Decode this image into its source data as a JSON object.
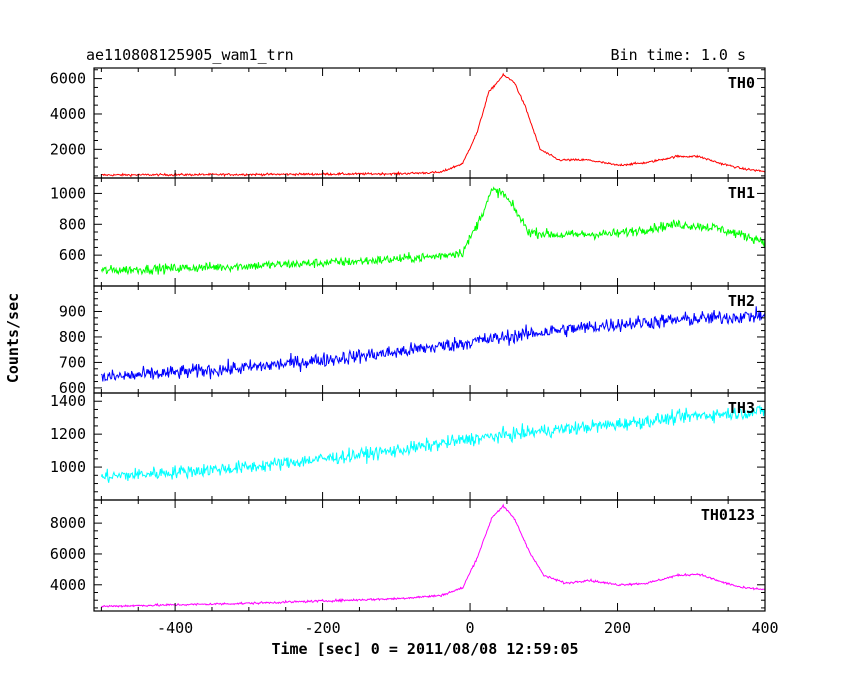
{
  "header": {
    "title": "ae110808125905_wam1_trn",
    "bin_time": "Bin time: 1.0 s"
  },
  "chart_data": {
    "type": "line",
    "title": "ae110808125905_wam1_trn",
    "xlabel": "Time [sec] 0 = 2011/08/08 12:59:05",
    "ylabel": "Counts/sec",
    "xlim": [
      -510,
      400
    ],
    "x_ticks": [
      -400,
      -200,
      0,
      200,
      400
    ],
    "grid": false,
    "panels": [
      {
        "name": "TH0",
        "color": "#ff0000",
        "ylim": [
          380,
          6600
        ],
        "y_ticks": [
          2000,
          4000,
          6000
        ],
        "noise": 60,
        "profile": [
          [
            -500,
            550
          ],
          [
            -300,
            580
          ],
          [
            -100,
            620
          ],
          [
            -40,
            700
          ],
          [
            -10,
            1200
          ],
          [
            10,
            3000
          ],
          [
            25,
            5200
          ],
          [
            45,
            6200
          ],
          [
            60,
            5800
          ],
          [
            75,
            4400
          ],
          [
            95,
            2000
          ],
          [
            120,
            1400
          ],
          [
            160,
            1400
          ],
          [
            200,
            1100
          ],
          [
            240,
            1250
          ],
          [
            280,
            1600
          ],
          [
            310,
            1600
          ],
          [
            340,
            1200
          ],
          [
            370,
            900
          ],
          [
            400,
            750
          ]
        ]
      },
      {
        "name": "TH1",
        "color": "#00ff00",
        "ylim": [
          400,
          1100
        ],
        "y_ticks": [
          600,
          800,
          1000
        ],
        "noise": 30,
        "profile": [
          [
            -500,
            500
          ],
          [
            -300,
            530
          ],
          [
            -150,
            560
          ],
          [
            -50,
            590
          ],
          [
            -10,
            620
          ],
          [
            10,
            800
          ],
          [
            30,
            1020
          ],
          [
            45,
            1000
          ],
          [
            60,
            900
          ],
          [
            80,
            750
          ],
          [
            120,
            730
          ],
          [
            200,
            740
          ],
          [
            280,
            800
          ],
          [
            330,
            780
          ],
          [
            400,
            690
          ]
        ]
      },
      {
        "name": "TH2",
        "color": "#0000ff",
        "ylim": [
          580,
          1000
        ],
        "y_ticks": [
          600,
          700,
          800,
          900
        ],
        "noise": 28,
        "profile": [
          [
            -500,
            640
          ],
          [
            -300,
            680
          ],
          [
            -100,
            740
          ],
          [
            0,
            780
          ],
          [
            100,
            820
          ],
          [
            200,
            850
          ],
          [
            300,
            870
          ],
          [
            400,
            885
          ]
        ]
      },
      {
        "name": "TH3",
        "color": "#00ffff",
        "ylim": [
          800,
          1450
        ],
        "y_ticks": [
          1000,
          1200,
          1400
        ],
        "noise": 40,
        "profile": [
          [
            -500,
            940
          ],
          [
            -300,
            1000
          ],
          [
            -100,
            1100
          ],
          [
            0,
            1170
          ],
          [
            100,
            1220
          ],
          [
            200,
            1260
          ],
          [
            300,
            1310
          ],
          [
            400,
            1340
          ]
        ]
      },
      {
        "name": "TH0123",
        "color": "#ff00ff",
        "ylim": [
          2300,
          9500
        ],
        "y_ticks": [
          4000,
          6000,
          8000
        ],
        "noise": 70,
        "profile": [
          [
            -500,
            2600
          ],
          [
            -300,
            2800
          ],
          [
            -100,
            3100
          ],
          [
            -40,
            3300
          ],
          [
            -10,
            3800
          ],
          [
            10,
            5800
          ],
          [
            30,
            8400
          ],
          [
            45,
            9100
          ],
          [
            60,
            8300
          ],
          [
            80,
            6200
          ],
          [
            100,
            4600
          ],
          [
            130,
            4100
          ],
          [
            160,
            4300
          ],
          [
            200,
            4000
          ],
          [
            240,
            4100
          ],
          [
            280,
            4600
          ],
          [
            310,
            4700
          ],
          [
            340,
            4200
          ],
          [
            370,
            3800
          ],
          [
            400,
            3700
          ]
        ]
      }
    ]
  }
}
